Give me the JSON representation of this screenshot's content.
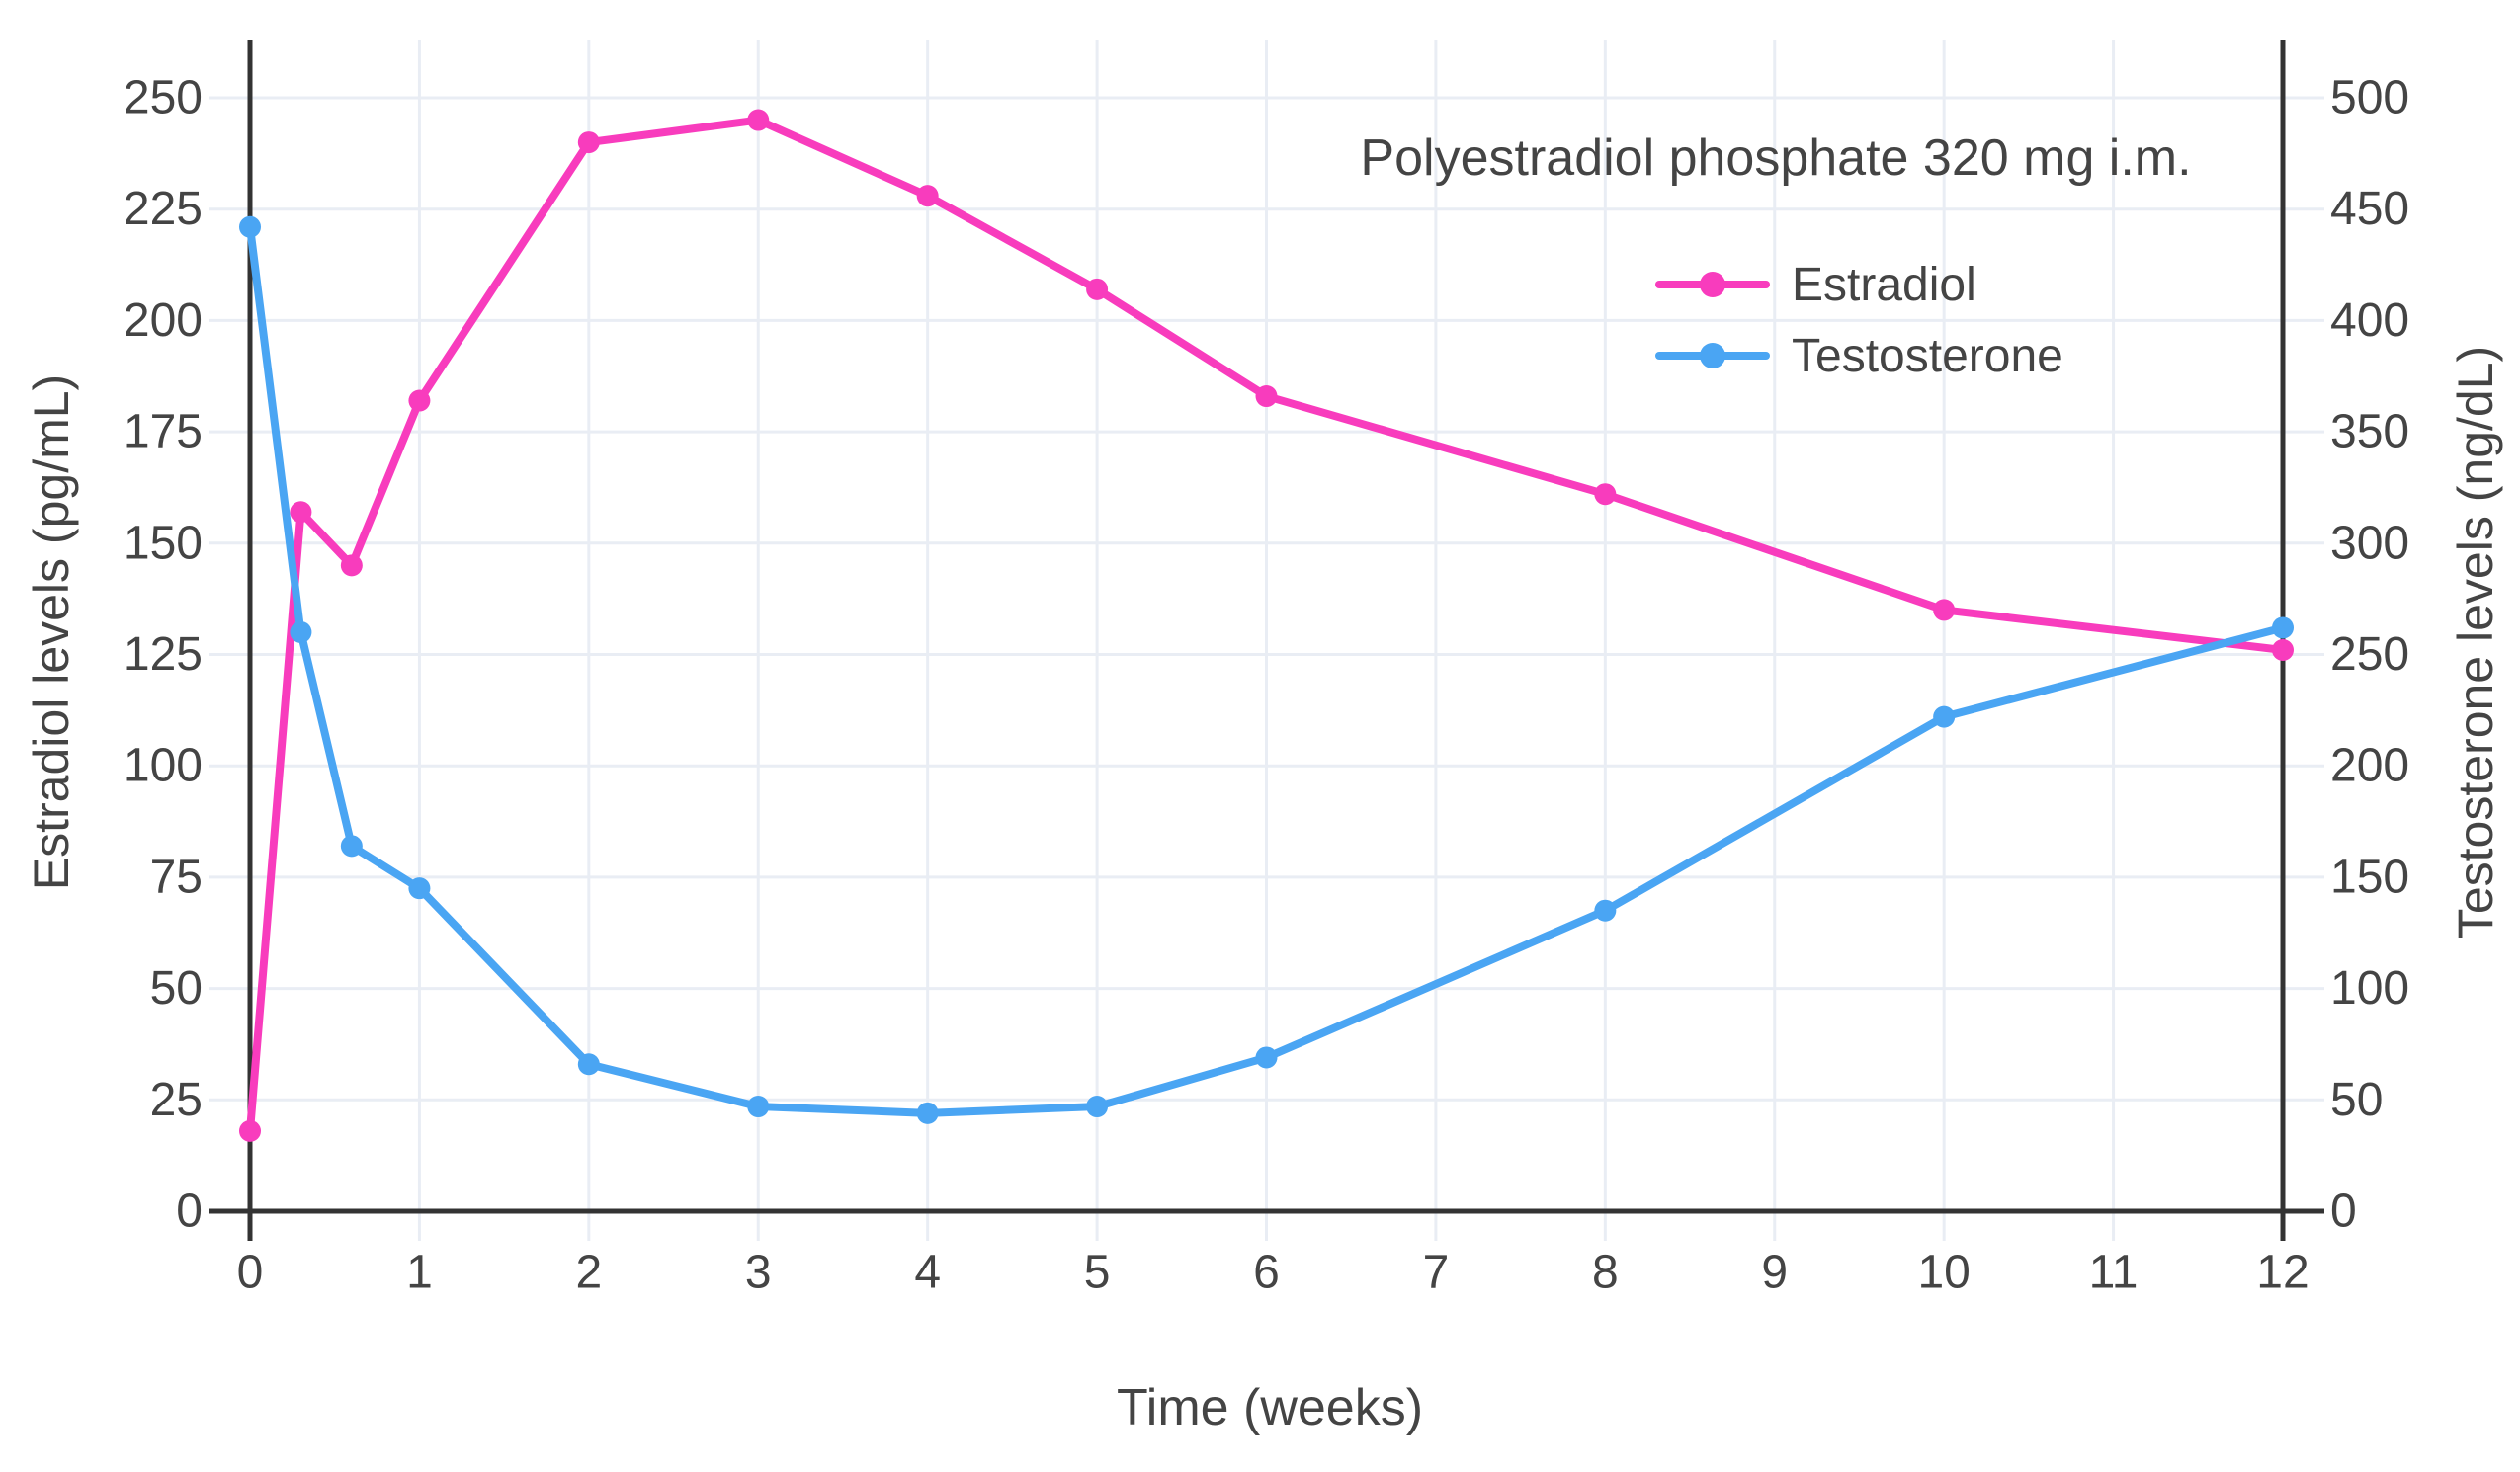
{
  "chart_data": {
    "type": "line",
    "title": "Polyestradiol phosphate 320 mg i.m.",
    "xlabel": "Time (weeks)",
    "ylabel_left": "Estradiol levels (pg/mL)",
    "ylabel_right": "Testosterone levels (ng/dL)",
    "x": [
      0,
      0.3,
      0.6,
      1,
      2,
      3,
      4,
      5,
      6,
      8,
      10,
      12
    ],
    "series": [
      {
        "name": "Estradiol",
        "axis": "left",
        "unit": "pg/mL",
        "color": "#f83cbd",
        "values": [
          18,
          157,
          145,
          182,
          240,
          245,
          228,
          207,
          183,
          161,
          135,
          126
        ]
      },
      {
        "name": "Testosterone",
        "axis": "right",
        "unit": "ng/dL",
        "color": "#4aa5f3",
        "values": [
          442,
          260,
          164,
          145,
          66,
          47,
          44,
          47,
          69,
          135,
          222,
          262
        ]
      }
    ],
    "x_axis": {
      "range": [
        0,
        12
      ],
      "ticks": [
        0,
        1,
        2,
        3,
        4,
        5,
        6,
        7,
        8,
        9,
        10,
        11,
        12
      ]
    },
    "y_left": {
      "range": [
        0,
        250
      ],
      "ticks": [
        0,
        25,
        50,
        75,
        100,
        125,
        150,
        175,
        200,
        225,
        250
      ]
    },
    "y_right": {
      "range": [
        0,
        500
      ],
      "ticks": [
        0,
        50,
        100,
        150,
        200,
        250,
        300,
        350,
        400,
        450,
        500
      ]
    },
    "grid": true,
    "legend_position": "top-right",
    "colors": {
      "text": "#444444",
      "axis_line": "#333333",
      "gridline": "#e9edf4",
      "background": "#ffffff",
      "estradiol": "#f83cbd",
      "testosterone": "#4aa5f3"
    }
  }
}
